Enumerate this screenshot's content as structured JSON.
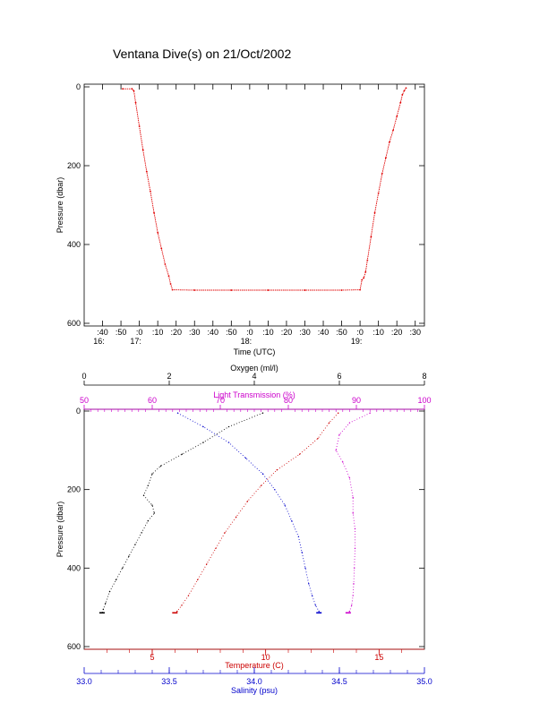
{
  "title": "Ventana Dive(s) on 21/Oct/2002",
  "colors": {
    "axis": "#000000",
    "pressure_trace": "#e00000",
    "temperature": "#cc0000",
    "salinity": "#0000cc",
    "light_transmission": "#cc00cc",
    "oxygen": "#000000"
  },
  "chart_data": [
    {
      "type": "line",
      "title": "Ventana Dive(s) on 21/Oct/2002",
      "xlabel": "Time (UTC)",
      "ylabel": "Pressure (dbar)",
      "x_unit": "minutes after 16:00 UTC",
      "xlim": [
        30,
        215
      ],
      "ylim": [
        600,
        0
      ],
      "y_ticks": [
        0,
        200,
        400,
        600
      ],
      "y_tick_labels": [
        "0",
        "200",
        "400",
        "600"
      ],
      "x_ticks": [
        40,
        50,
        60,
        70,
        80,
        90,
        100,
        110,
        120,
        130,
        140,
        150,
        160,
        170,
        180,
        190,
        200,
        210
      ],
      "x_tick_labels": [
        ":40",
        ":50",
        ":0",
        ":10",
        ":20",
        ":30",
        ":40",
        ":50",
        ":0",
        ":10",
        ":20",
        ":30",
        ":40",
        ":50",
        ":0",
        ":10",
        ":20",
        ":30"
      ],
      "hour_labels": [
        {
          "label": "16:",
          "x": 40
        },
        {
          "label": "17:",
          "x": 60
        },
        {
          "label": "18:",
          "x": 120
        },
        {
          "label": "19:",
          "x": 180
        }
      ],
      "grid": false,
      "series": [
        {
          "color": "#e00000",
          "x": [
            51,
            56,
            57,
            58,
            60,
            62,
            64,
            66,
            68,
            70,
            72,
            74,
            76,
            77,
            78,
            90,
            110,
            130,
            150,
            170,
            180,
            181,
            182,
            183,
            184,
            186,
            188,
            190,
            192,
            194,
            196,
            198,
            200,
            202,
            203,
            204,
            205
          ],
          "y": [
            5,
            5,
            10,
            40,
            100,
            160,
            215,
            265,
            320,
            370,
            410,
            450,
            480,
            500,
            515,
            516,
            516,
            516,
            516,
            516,
            515,
            490,
            485,
            470,
            440,
            380,
            320,
            270,
            220,
            180,
            140,
            110,
            75,
            40,
            20,
            10,
            3
          ]
        }
      ]
    },
    {
      "type": "scatter",
      "ylabel": "Pressure (dbar)",
      "ylim": [
        600,
        0
      ],
      "y_ticks": [
        0,
        200,
        400,
        600
      ],
      "y_tick_labels": [
        "0",
        "200",
        "400",
        "600"
      ],
      "axes": {
        "oxygen": {
          "label": "Oxygen (ml/l)",
          "xlim": [
            0,
            8
          ],
          "ticks": [
            0,
            2,
            4,
            6,
            8
          ],
          "tick_labels": [
            "0",
            "2",
            "4",
            "6",
            "8"
          ],
          "position": "top"
        },
        "light_transmission": {
          "label": "Light Transmission (%)",
          "xlim": [
            50,
            100
          ],
          "ticks": [
            50,
            60,
            70,
            80,
            90,
            100
          ],
          "tick_labels": [
            "50",
            "60",
            "70",
            "80",
            "90",
            "100"
          ],
          "position": "top"
        },
        "temperature": {
          "label": "Temperature (C)",
          "xlim": [
            2,
            17
          ],
          "ticks": [
            5,
            10,
            15
          ],
          "tick_labels": [
            "5",
            "10",
            "15"
          ],
          "position": "bottom"
        },
        "salinity": {
          "label": "Salinity (psu)",
          "xlim": [
            33.0,
            35.0
          ],
          "ticks": [
            33.0,
            33.5,
            34.0,
            34.5,
            35.0
          ],
          "tick_labels": [
            "33.0",
            "33.5",
            "34.0",
            "34.5",
            "35.0"
          ],
          "position": "bottom"
        }
      },
      "grid": false,
      "series": [
        {
          "axis": "oxygen",
          "color": "#000000",
          "x": [
            4.2,
            3.4,
            2.8,
            2.3,
            1.8,
            1.6,
            1.5,
            1.4,
            1.6,
            1.65,
            1.5,
            1.35,
            1.2,
            1.05,
            0.9,
            0.75,
            0.6,
            0.5,
            0.45,
            0.42
          ],
          "y": [
            5,
            40,
            80,
            110,
            140,
            160,
            190,
            215,
            240,
            260,
            280,
            310,
            340,
            370,
            400,
            430,
            460,
            490,
            505,
            514
          ]
        },
        {
          "axis": "light_transmission",
          "color": "#cc00cc",
          "x": [
            92,
            89,
            87.5,
            87,
            88,
            89,
            89.5,
            89.5,
            89.8,
            89.8,
            89.7,
            89.6,
            89.5,
            89.3,
            89.0,
            88.8
          ],
          "y": [
            5,
            30,
            60,
            100,
            130,
            170,
            220,
            260,
            300,
            350,
            400,
            440,
            470,
            495,
            510,
            514
          ]
        },
        {
          "axis": "temperature",
          "color": "#cc0000",
          "x": [
            13.2,
            12.8,
            12.3,
            11.5,
            10.5,
            9.8,
            9.2,
            8.7,
            8.2,
            7.8,
            7.4,
            7.0,
            6.6,
            6.3,
            6.1,
            6.0
          ],
          "y": [
            5,
            30,
            70,
            110,
            150,
            190,
            230,
            270,
            310,
            350,
            390,
            430,
            470,
            495,
            510,
            514
          ]
        },
        {
          "axis": "salinity",
          "color": "#0000cc",
          "x": [
            33.55,
            33.7,
            33.85,
            33.95,
            34.05,
            34.12,
            34.18,
            34.22,
            34.26,
            34.28,
            34.3,
            34.32,
            34.34,
            34.36,
            34.38,
            34.38
          ],
          "y": [
            5,
            40,
            80,
            120,
            160,
            200,
            240,
            280,
            320,
            360,
            400,
            440,
            470,
            495,
            510,
            514
          ]
        }
      ]
    }
  ]
}
